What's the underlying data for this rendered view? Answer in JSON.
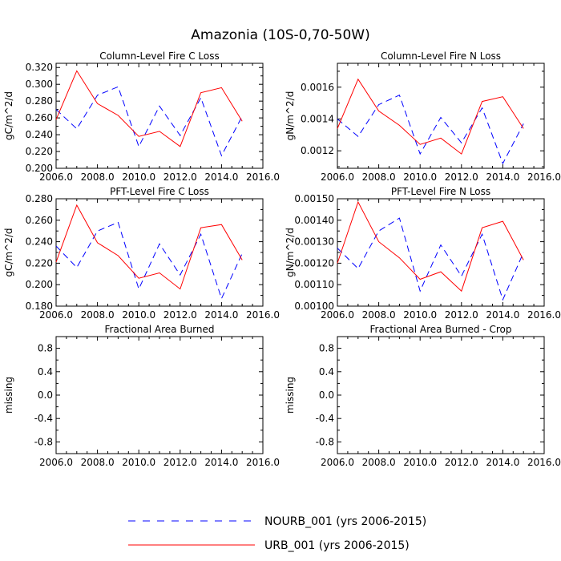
{
  "figure": {
    "title": "Amazonia (10S-0,70-50W)"
  },
  "legend": {
    "entries": [
      {
        "label": "NOURB_001 (yrs 2006-2015)",
        "color": "#0000ff",
        "style": "dashed"
      },
      {
        "label": "URB_001 (yrs 2006-2015)",
        "color": "#ff0000",
        "style": "solid"
      }
    ]
  },
  "chart_data": [
    {
      "type": "line",
      "title": "Column-Level Fire C Loss",
      "ylabel": "gC/m^2/d",
      "xlim": [
        2006,
        2016
      ],
      "ylim": [
        0.2,
        0.325
      ],
      "xticks": [
        "2006.0",
        "2008.0",
        "2010.0",
        "2012.0",
        "2014.0",
        "2016.0"
      ],
      "yticks": [
        {
          "v": 0.2,
          "t": "0.200"
        },
        {
          "v": 0.22,
          "t": "0.220"
        },
        {
          "v": 0.24,
          "t": "0.240"
        },
        {
          "v": 0.26,
          "t": "0.260"
        },
        {
          "v": 0.28,
          "t": "0.280"
        },
        {
          "v": 0.3,
          "t": "0.300"
        },
        {
          "v": 0.32,
          "t": "0.320"
        }
      ],
      "x": [
        2006,
        2007,
        2008,
        2009,
        2010,
        2011,
        2012,
        2013,
        2014,
        2015
      ],
      "series": [
        {
          "name": "NOURB_001",
          "values": [
            0.27,
            0.247,
            0.287,
            0.297,
            0.226,
            0.274,
            0.239,
            0.284,
            0.215,
            0.262
          ]
        },
        {
          "name": "URB_001",
          "values": [
            0.258,
            0.316,
            0.277,
            0.263,
            0.238,
            0.244,
            0.226,
            0.29,
            0.296,
            0.256
          ]
        }
      ]
    },
    {
      "type": "line",
      "title": "Column-Level Fire N Loss",
      "ylabel": "gN/m^2/d",
      "xlim": [
        2006,
        2016
      ],
      "ylim": [
        0.00109,
        0.00175
      ],
      "xticks": [
        "2006.0",
        "2008.0",
        "2010.0",
        "2012.0",
        "2014.0",
        "2016.0"
      ],
      "yticks": [
        {
          "v": 0.0012,
          "t": "0.0012"
        },
        {
          "v": 0.0014,
          "t": "0.0014"
        },
        {
          "v": 0.0016,
          "t": "0.0016"
        }
      ],
      "x": [
        2006,
        2007,
        2008,
        2009,
        2010,
        2011,
        2012,
        2013,
        2014,
        2015
      ],
      "series": [
        {
          "name": "NOURB_001",
          "values": [
            0.0014,
            0.00129,
            0.00149,
            0.00155,
            0.00118,
            0.00141,
            0.00125,
            0.00147,
            0.00112,
            0.00137
          ]
        },
        {
          "name": "URB_001",
          "values": [
            0.00134,
            0.00165,
            0.00145,
            0.00136,
            0.00124,
            0.00128,
            0.00118,
            0.00151,
            0.00154,
            0.00134
          ]
        }
      ]
    },
    {
      "type": "line",
      "title": "PFT-Level Fire C Loss",
      "ylabel": "gC/m^2/d",
      "xlim": [
        2006,
        2016
      ],
      "ylim": [
        0.18,
        0.28
      ],
      "xticks": [
        "2006.0",
        "2008.0",
        "2010.0",
        "2012.0",
        "2014.0",
        "2016.0"
      ],
      "yticks": [
        {
          "v": 0.18,
          "t": "0.180"
        },
        {
          "v": 0.2,
          "t": "0.200"
        },
        {
          "v": 0.22,
          "t": "0.220"
        },
        {
          "v": 0.24,
          "t": "0.240"
        },
        {
          "v": 0.26,
          "t": "0.260"
        },
        {
          "v": 0.28,
          "t": "0.280"
        }
      ],
      "x": [
        2006,
        2007,
        2008,
        2009,
        2010,
        2011,
        2012,
        2013,
        2014,
        2015
      ],
      "series": [
        {
          "name": "NOURB_001",
          "values": [
            0.236,
            0.216,
            0.25,
            0.258,
            0.196,
            0.238,
            0.209,
            0.247,
            0.187,
            0.229
          ]
        },
        {
          "name": "URB_001",
          "values": [
            0.221,
            0.274,
            0.239,
            0.227,
            0.206,
            0.211,
            0.196,
            0.253,
            0.256,
            0.223
          ]
        }
      ]
    },
    {
      "type": "line",
      "title": "PFT-Level Fire N Loss",
      "ylabel": "gN/m^2/d",
      "xlim": [
        2006,
        2016
      ],
      "ylim": [
        0.001,
        0.0015
      ],
      "xticks": [
        "2006.0",
        "2008.0",
        "2010.0",
        "2012.0",
        "2014.0",
        "2016.0"
      ],
      "yticks": [
        {
          "v": 0.001,
          "t": "0.00100"
        },
        {
          "v": 0.0011,
          "t": "0.00110"
        },
        {
          "v": 0.0012,
          "t": "0.00120"
        },
        {
          "v": 0.0013,
          "t": "0.00130"
        },
        {
          "v": 0.0014,
          "t": "0.00140"
        },
        {
          "v": 0.0015,
          "t": "0.00150"
        }
      ],
      "x": [
        2006,
        2007,
        2008,
        2009,
        2010,
        2011,
        2012,
        2013,
        2014,
        2015
      ],
      "series": [
        {
          "name": "NOURB_001",
          "values": [
            0.00127,
            0.001175,
            0.00135,
            0.00141,
            0.00107,
            0.001285,
            0.00114,
            0.001335,
            0.00103,
            0.00125
          ]
        },
        {
          "name": "URB_001",
          "values": [
            0.0012,
            0.001485,
            0.0013,
            0.001225,
            0.001125,
            0.00116,
            0.00107,
            0.001365,
            0.001395,
            0.001215
          ]
        }
      ]
    },
    {
      "type": "line",
      "title": "Fractional Area Burned",
      "ylabel": "missing",
      "xlim": [
        2006,
        2016
      ],
      "ylim": [
        -1,
        1
      ],
      "xticks": [
        "2006.0",
        "2008.0",
        "2010.0",
        "2012.0",
        "2014.0",
        "2016.0"
      ],
      "yticks": [
        {
          "v": 0.8,
          "t": "0.8"
        },
        {
          "v": 0.4,
          "t": "0.4"
        },
        {
          "v": 0.0,
          "t": "0.0"
        },
        {
          "v": -0.4,
          "t": "-0.4"
        },
        {
          "v": -0.8,
          "t": "-0.8"
        }
      ],
      "x": [],
      "series": []
    },
    {
      "type": "line",
      "title": "Fractional Area Burned - Crop",
      "ylabel": "missing",
      "xlim": [
        2006,
        2016
      ],
      "ylim": [
        -1,
        1
      ],
      "xticks": [
        "2006.0",
        "2008.0",
        "2010.0",
        "2012.0",
        "2014.0",
        "2016.0"
      ],
      "yticks": [
        {
          "v": 0.8,
          "t": "0.8"
        },
        {
          "v": 0.4,
          "t": "0.4"
        },
        {
          "v": 0.0,
          "t": "0.0"
        },
        {
          "v": -0.4,
          "t": "-0.4"
        },
        {
          "v": -0.8,
          "t": "-0.8"
        }
      ],
      "x": [],
      "series": []
    }
  ]
}
